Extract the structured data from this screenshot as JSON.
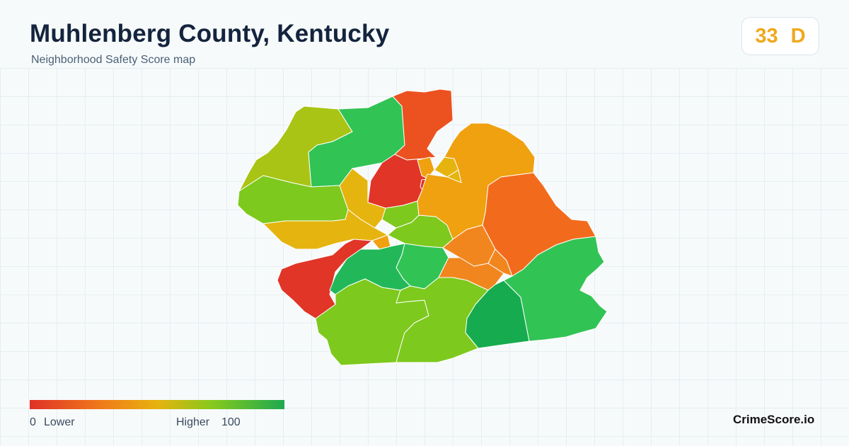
{
  "header": {
    "title": "Muhlenberg County, Kentucky",
    "subtitle": "Neighborhood Safety Score map"
  },
  "score": {
    "value": "33",
    "grade": "D",
    "color": "#f0a81c"
  },
  "legend": {
    "min_label": "0",
    "low_label": "Lower",
    "high_label": "Higher",
    "max_label": "100",
    "colors": [
      "#e03127",
      "#f07a1a",
      "#e8b20e",
      "#85c91c",
      "#1ea94f"
    ]
  },
  "brand": "CrimeScore.io",
  "palette": {
    "red": "#e03527",
    "red_orange": "#ec5220",
    "orange": "#f26b1c",
    "orange2": "#f2861e",
    "amber": "#efa10f",
    "yellow": "#e6b40f",
    "yellow_green": "#a9c414",
    "lime": "#7dc91d",
    "green": "#32c355",
    "green2": "#22b85a",
    "dark_green": "#16ab4e"
  }
}
